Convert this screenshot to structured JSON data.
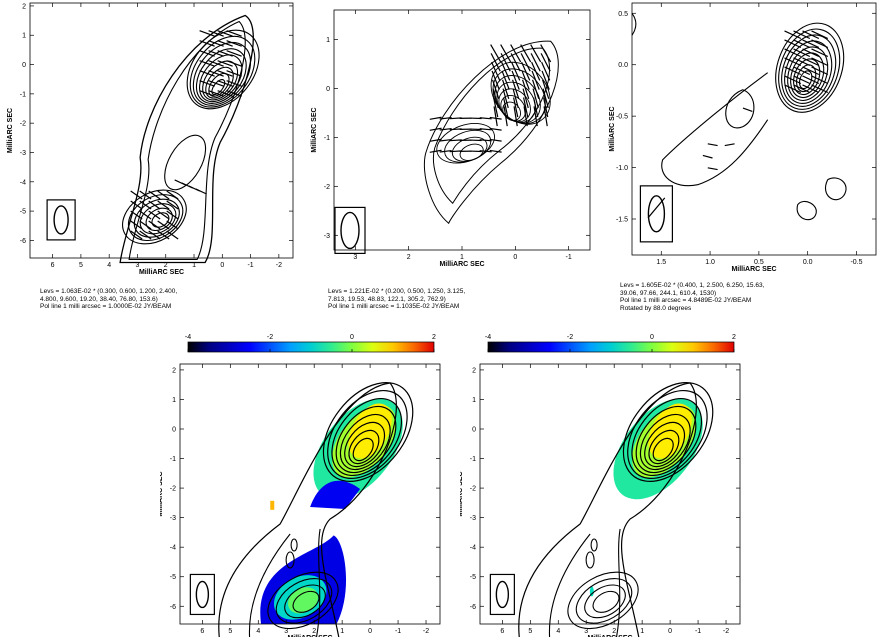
{
  "chart_data": [
    {
      "type": "contour",
      "panel": "top-left",
      "xlabel": "MilliARC SEC",
      "ylabel": "MilliARC SEC",
      "x_ticks": [
        6,
        5,
        4,
        3,
        2,
        1,
        0,
        -1,
        -2
      ],
      "y_ticks": [
        2,
        1,
        0,
        -1,
        -2,
        -3,
        -4,
        -5,
        -6
      ],
      "xlim": [
        6.8,
        -2.5
      ],
      "ylim": [
        -6.6,
        2.1
      ],
      "core": {
        "x": -0.1,
        "y": -0.1
      },
      "jet_component": {
        "x": 2.4,
        "y": -5.2
      },
      "beam": {
        "x": 5.7,
        "y": -5.3
      },
      "caption": [
        "Levs = 1.063E-02 * (0.300, 0.600, 1.200, 2.400,",
        "4.800, 9.600, 19.20, 38.40, 76.80, 153.6)",
        "Pol line 1 milli arcsec =  1.0000E-02 JY/BEAM"
      ]
    },
    {
      "type": "contour",
      "panel": "top-middle",
      "xlabel": "MilliARC SEC",
      "ylabel": "MilliARC SEC",
      "x_ticks": [
        3,
        2,
        1,
        0,
        -1
      ],
      "y_ticks": [
        1,
        0,
        -1,
        -2,
        -3
      ],
      "xlim": [
        3.4,
        -1.4
      ],
      "ylim": [
        -3.3,
        1.6
      ],
      "core": {
        "x": -0.1,
        "y": -0.1
      },
      "beam": {
        "x": 3.1,
        "y": -2.9
      },
      "caption": [
        "Levs = 1.221E-02 * (0.200, 0.500, 1.250, 3.125,",
        "7.813, 19.53, 48.83, 122.1, 305.2, 762.9)",
        "Pol line 1 milli arcsec =  1.1035E-02 JY/BEAM"
      ]
    },
    {
      "type": "contour",
      "panel": "top-right",
      "xlabel": "MilliARC SEC",
      "ylabel": "MilliARC SEC",
      "x_ticks": [
        "1.5",
        "1.0",
        "0.5",
        "0.0",
        "-0.5"
      ],
      "y_ticks": [
        "0.5",
        "0.0",
        "-0.5",
        "-1.0",
        "-1.5"
      ],
      "xlim": [
        1.8,
        -0.7
      ],
      "ylim": [
        -1.85,
        0.6
      ],
      "core": {
        "x": 0.0,
        "y": 0.0
      },
      "beam": {
        "x": 1.55,
        "y": -1.45
      },
      "caption": [
        "Levs = 1.605E-02 * (0.400, 1, 2.500, 6.250, 15.63,",
        "39.06, 97.66, 244.1, 610.4, 1530)",
        "Pol line 1 milli arcsec =  4.8489E-02 JY/BEAM",
        "Rotated by 88.0 degrees"
      ]
    },
    {
      "type": "heatmap",
      "panel": "bottom-left",
      "xlabel": "MilliARC SEC",
      "ylabel": "MilliARC SEC",
      "x_ticks": [
        6,
        5,
        4,
        3,
        2,
        1,
        0,
        -1,
        -2
      ],
      "y_ticks": [
        2,
        1,
        0,
        -1,
        -2,
        -3,
        -4,
        -5,
        -6
      ],
      "xlim": [
        6.8,
        -2.5
      ],
      "ylim": [
        -6.6,
        2.2
      ],
      "colorbar": {
        "ticks": [
          -4,
          -2,
          0,
          2
        ],
        "range": [
          -4,
          2
        ]
      },
      "core": {
        "x": 0.0,
        "y": 0.0
      },
      "beam": {
        "x": 6.0,
        "y": -5.6
      }
    },
    {
      "type": "heatmap",
      "panel": "bottom-right",
      "xlabel": "MilliARC SEC",
      "ylabel": "MilliARC SEC",
      "x_ticks": [
        6,
        5,
        4,
        3,
        2,
        1,
        0,
        -1,
        -2
      ],
      "y_ticks": [
        2,
        1,
        0,
        -1,
        -2,
        -3,
        -4,
        -5,
        -6
      ],
      "xlim": [
        6.8,
        -2.5
      ],
      "ylim": [
        -6.6,
        2.2
      ],
      "colorbar": {
        "ticks": [
          -4,
          -2,
          0,
          2
        ],
        "range": [
          -4,
          2
        ]
      },
      "core": {
        "x": 0.0,
        "y": 0.0
      },
      "beam": {
        "x": 6.0,
        "y": -5.6
      }
    }
  ],
  "colors": {
    "contour": "#000000",
    "colormap": [
      "#000000",
      "#00007f",
      "#0000ff",
      "#00a0ff",
      "#00e0c0",
      "#80ff40",
      "#ffff00",
      "#ff8000",
      "#e00000"
    ]
  }
}
